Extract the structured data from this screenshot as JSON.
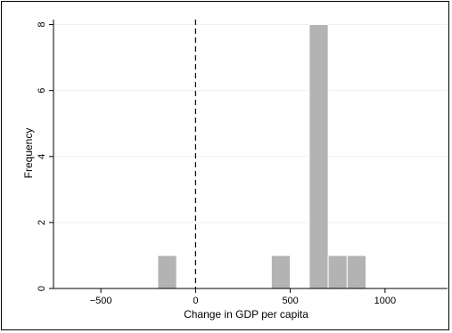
{
  "chart_data": {
    "type": "bar",
    "title": "",
    "xlabel": "Change in GDP per capita",
    "ylabel": "Frequency",
    "xlim": [
      -750,
      1330
    ],
    "ylim": [
      0,
      8.15
    ],
    "x_ticks": [
      -500,
      0,
      500,
      1000
    ],
    "x_tick_labels": [
      "−500",
      "0",
      "500",
      "1000"
    ],
    "y_ticks": [
      0,
      2,
      4,
      6,
      8
    ],
    "y_tick_labels": [
      "0",
      "2",
      "4",
      "6",
      "8"
    ],
    "bins": [
      {
        "start": -200,
        "end": -100,
        "frequency": 1
      },
      {
        "start": 400,
        "end": 500,
        "frequency": 1
      },
      {
        "start": 600,
        "end": 700,
        "frequency": 8
      },
      {
        "start": 700,
        "end": 800,
        "frequency": 1
      },
      {
        "start": 800,
        "end": 900,
        "frequency": 1
      }
    ],
    "reference_line": {
      "x": 0,
      "style": "dashed"
    },
    "grid": true,
    "colors": {
      "bar_fill": "#b3b3b3",
      "bar_edge": "#ffffff",
      "grid": "#eaf2f3",
      "reference_line": "#000000"
    }
  }
}
